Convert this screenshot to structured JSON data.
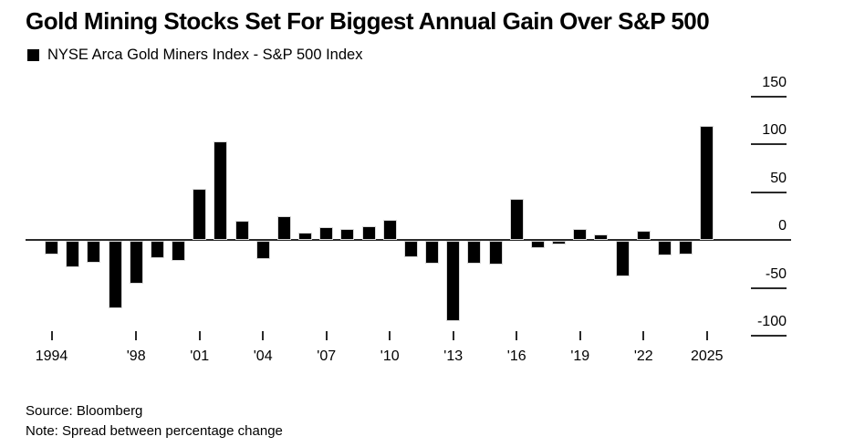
{
  "header": {
    "title": "Gold Mining Stocks Set For Biggest Annual Gain Over S&P 500",
    "legend_label": "NYSE Arca Gold Miners Index - S&P 500 Index",
    "legend_swatch_color": "#000000"
  },
  "chart_data": {
    "type": "bar",
    "title": "Gold Mining Stocks Set For Biggest Annual Gain Over S&P 500",
    "legend": "NYSE Arca Gold Miners Index - S&P 500 Index",
    "legend_position": "top-left",
    "grid": false,
    "bar_color": "#000000",
    "axis_color": "#2a2a2a",
    "ylim": [
      -100,
      150
    ],
    "y_ticks": [
      150,
      100,
      50,
      0,
      -50,
      -100
    ],
    "y_tick_labels": [
      "150",
      "100",
      "50",
      "0",
      "-50",
      "-100"
    ],
    "x_tick_years": [
      1994,
      1998,
      2001,
      2004,
      2007,
      2010,
      2013,
      2016,
      2019,
      2022,
      2025
    ],
    "x_tick_labels": [
      "1994",
      "'98",
      "'01",
      "'04",
      "'07",
      "'10",
      "'13",
      "'16",
      "'19",
      "'22",
      "2025"
    ],
    "categories": [
      1994,
      1995,
      1996,
      1997,
      1998,
      1999,
      2000,
      2001,
      2002,
      2003,
      2004,
      2005,
      2006,
      2007,
      2008,
      2009,
      2010,
      2011,
      2012,
      2013,
      2014,
      2015,
      2016,
      2017,
      2018,
      2019,
      2020,
      2021,
      2022,
      2023,
      2024,
      2025
    ],
    "values": [
      -14,
      -28,
      -23,
      -70,
      -45,
      -18,
      -21,
      53,
      103,
      20,
      -19,
      25,
      8,
      13,
      11,
      14,
      21,
      -17,
      -24,
      -84,
      -24,
      -25,
      43,
      -8,
      -4,
      11,
      6,
      -37,
      10,
      -15,
      -14,
      119
    ],
    "xlabel": "",
    "ylabel": ""
  },
  "footer": {
    "source": "Source: Bloomberg",
    "note": "Note: Spread between percentage change"
  }
}
